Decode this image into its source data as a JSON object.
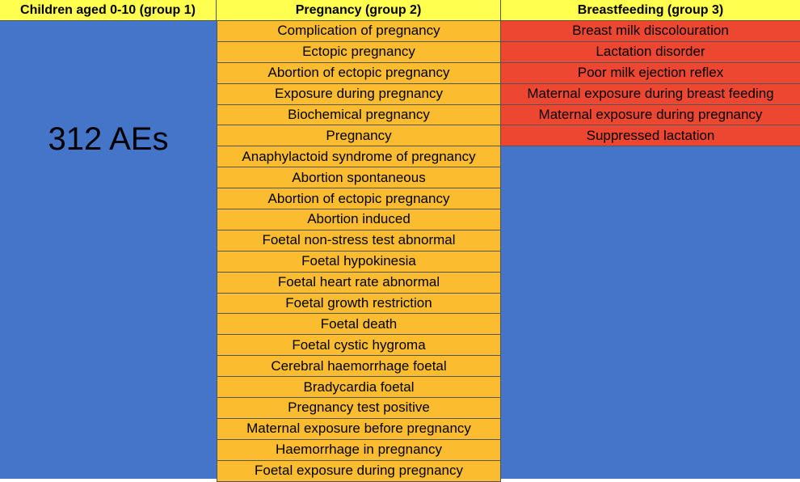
{
  "colors": {
    "header": "#ffff4f",
    "group1": "#4475c9",
    "pregnancy": "#fcbc30",
    "breastfeeding": "#ee4731"
  },
  "headers": {
    "group1": "Children aged 0-10 (group 1)",
    "group2": "Pregnancy (group 2)",
    "group3": "Breastfeeding (group 3)"
  },
  "group1": {
    "count_label": "312 AEs"
  },
  "pregnancy_items": [
    "Complication of pregnancy",
    "Ectopic pregnancy",
    "Abortion of ectopic pregnancy",
    "Exposure during pregnancy",
    "Biochemical pregnancy",
    "Pregnancy",
    "Anaphylactoid syndrome of pregnancy",
    "Abortion spontaneous",
    "Abortion of ectopic pregnancy",
    "Abortion induced",
    "Foetal non-stress test abnormal",
    "Foetal hypokinesia",
    "Foetal heart rate abnormal",
    "Foetal growth restriction",
    "Foetal death",
    "Foetal cystic hygroma",
    "Cerebral haemorrhage foetal",
    "Bradycardia foetal",
    "Pregnancy test positive",
    "Maternal exposure before pregnancy",
    "Haemorrhage in pregnancy",
    "Foetal exposure during pregnancy"
  ],
  "breastfeeding_items": [
    "Breast milk discolouration",
    "Lactation disorder",
    "Poor milk ejection reflex",
    "Maternal exposure during breast feeding",
    "Maternal exposure during pregnancy",
    "Suppressed lactation"
  ]
}
